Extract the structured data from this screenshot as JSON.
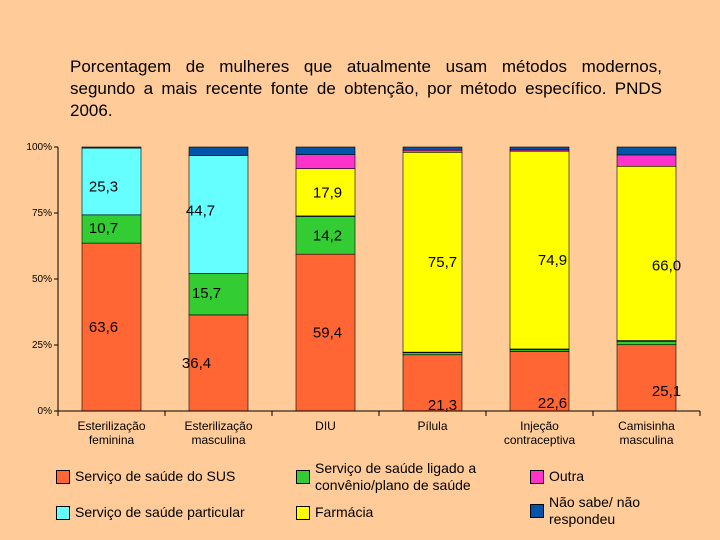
{
  "chart_data": {
    "type": "bar",
    "stacked": true,
    "title": "Porcentagem de mulheres que atualmente usam métodos modernos, segundo a mais recente fonte de obtenção, por método específico. PNDS 2006.",
    "categories": [
      "Esterilização feminina",
      "Esterilização masculina",
      "DIU",
      "Pílula",
      "Injeção contraceptiva",
      "Camisinha masculina"
    ],
    "y_ticks": [
      "0%",
      "25%",
      "50%",
      "75%",
      "100%"
    ],
    "ylim": [
      0,
      100
    ],
    "series": [
      {
        "name": "Serviço de saúde do SUS",
        "color": "#FF6633",
        "values": [
          63.6,
          36.4,
          59.4,
          21.3,
          22.6,
          25.1
        ],
        "labels": [
          "63,6",
          "36,4",
          "59,4",
          "21,3",
          "22,6",
          "25,1"
        ]
      },
      {
        "name": "Serviço de saúde ligado a convênio/plano de saúde",
        "color": "#33CC33",
        "values": [
          10.7,
          15.7,
          14.2,
          0.8,
          0.6,
          1.3
        ],
        "labels": [
          "10,7",
          "15,7",
          "14,2",
          "",
          "",
          ""
        ]
      },
      {
        "name": "Serviço de saúde particular",
        "color": "#66FFFF",
        "values": [
          25.3,
          44.7,
          0.3,
          0.2,
          0.3,
          0.3
        ],
        "labels": [
          "25,3",
          "44,7",
          "",
          "",
          "",
          ""
        ]
      },
      {
        "name": "Farmácia",
        "color": "#FFFF00",
        "values": [
          0,
          0,
          17.9,
          75.7,
          74.9,
          66.0
        ],
        "labels": [
          "",
          "",
          "17,9",
          "75,7",
          "74,9",
          "66,0"
        ]
      },
      {
        "name": "Outra",
        "color": "#FF33CC",
        "values": [
          0,
          0,
          5.3,
          0.8,
          0.5,
          4.3
        ],
        "labels": [
          "",
          "",
          "",
          "",
          "",
          ""
        ]
      },
      {
        "name": "Não sabe/ não respondeu",
        "color": "#0055AA",
        "values": [
          0.4,
          3.2,
          2.9,
          1.2,
          1.1,
          3.0
        ],
        "labels": [
          "",
          "",
          "",
          "",
          "",
          ""
        ]
      }
    ]
  }
}
